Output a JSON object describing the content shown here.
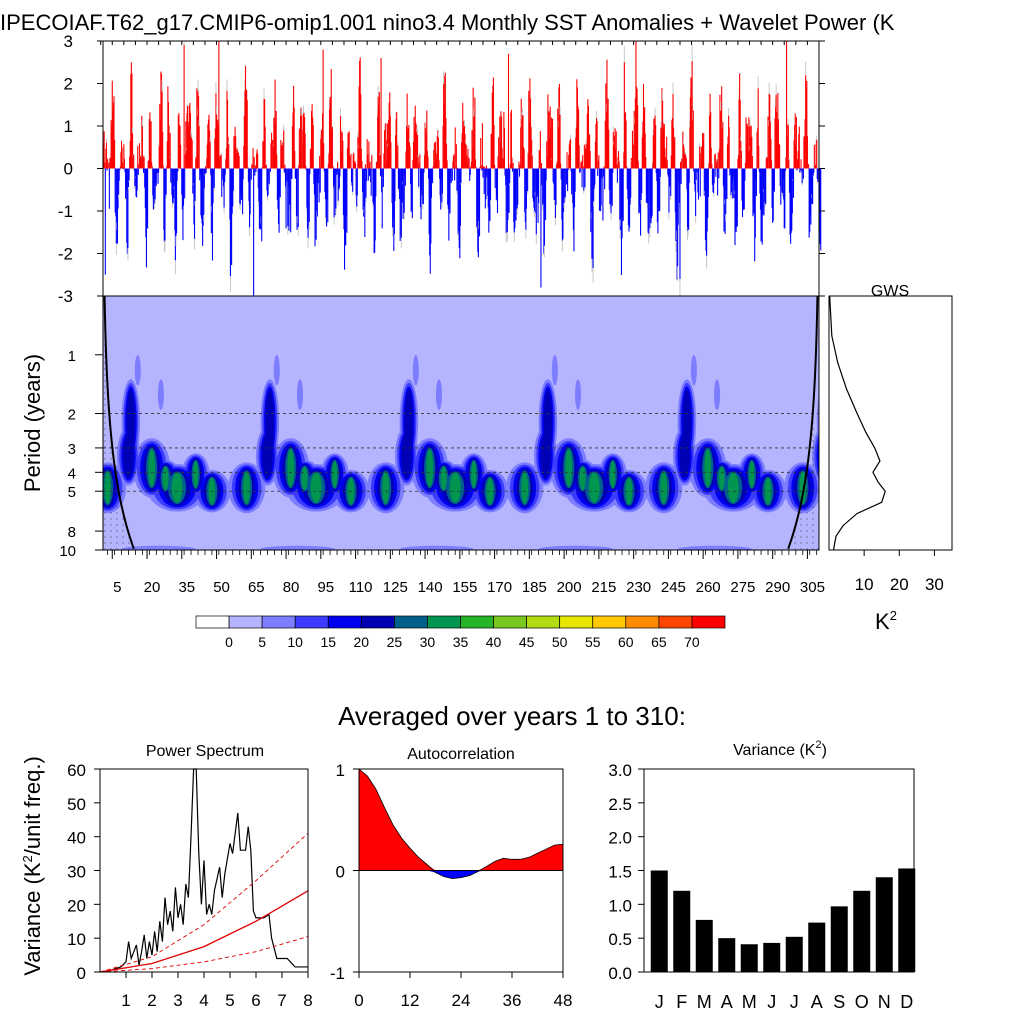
{
  "title": "IPECOIAF.T62_g17.CMIP6-omip1.001 nino3.4 Monthly SST Anomalies + Wavelet Power (K",
  "colors": {
    "positive": "#ff0000",
    "negative": "#0000ff",
    "gray": "#c8c8c8",
    "bar": "#000000"
  },
  "chart_data": [
    {
      "id": "sst_anomaly",
      "type": "bar",
      "title": "",
      "xlabel": "",
      "ylabel": "",
      "ylim": [
        -3,
        3
      ],
      "yticks": [
        3,
        2,
        1,
        0,
        -1,
        -2,
        -3
      ],
      "xlim": [
        1,
        310
      ],
      "note_values": "red bars above 0 and blue bars below 0; values estimated, representative ENSO-like series",
      "peaks": [
        {
          "x": 36,
          "y": 2.9
        },
        {
          "x": 51,
          "y": 3.0
        },
        {
          "x": 96,
          "y": 2.8
        },
        {
          "x": 121,
          "y": 2.6
        },
        {
          "x": 176,
          "y": 2.7
        },
        {
          "x": 226,
          "y": 2.5
        },
        {
          "x": 231,
          "y": 3.0
        },
        {
          "x": 296,
          "y": 3.0
        },
        {
          "x": 66,
          "y": -3.0
        },
        {
          "x": 190,
          "y": -2.8
        },
        {
          "x": 250,
          "y": -2.6
        },
        {
          "x": 2,
          "y": -2.5
        }
      ]
    },
    {
      "id": "wavelet_power",
      "type": "heatmap",
      "title": "",
      "xlabel": "",
      "ylabel": "Period (years)",
      "yticks": [
        "1",
        "2",
        "3",
        "4",
        "5",
        "8",
        "10"
      ],
      "xticks": [
        "5",
        "20",
        "35",
        "50",
        "65",
        "80",
        "95",
        "110",
        "125",
        "140",
        "155",
        "170",
        "185",
        "200",
        "215",
        "230",
        "245",
        "260",
        "275",
        "290",
        "305"
      ],
      "log_y": true,
      "ylim": [
        0.5,
        10
      ],
      "dashed_periods": [
        2,
        3,
        4,
        5
      ],
      "repeat_period_years": 60,
      "colorbar": {
        "labels": [
          "0",
          "5",
          "10",
          "15",
          "20",
          "25",
          "30",
          "35",
          "40",
          "45",
          "50",
          "55",
          "60",
          "65",
          "70"
        ],
        "colors": [
          "#ffffff",
          "#b4b4ff",
          "#7d7dff",
          "#3c3cff",
          "#0000f0",
          "#0000b4",
          "#00608c",
          "#009650",
          "#28b428",
          "#78c81e",
          "#b4dc14",
          "#e6e600",
          "#ffc800",
          "#ff8c00",
          "#ff4600",
          "#ff0000"
        ]
      }
    },
    {
      "id": "gws",
      "type": "line",
      "title": "GWS",
      "xlabel": "K²",
      "xticks": [
        "10",
        "20",
        "30"
      ],
      "xlim": [
        0,
        35
      ],
      "points": [
        {
          "period": 0.5,
          "value": 0.2
        },
        {
          "period": 0.8,
          "value": 0.8
        },
        {
          "period": 1.1,
          "value": 2.5
        },
        {
          "period": 1.5,
          "value": 5
        },
        {
          "period": 2.0,
          "value": 8
        },
        {
          "period": 2.5,
          "value": 10.5
        },
        {
          "period": 3.0,
          "value": 13
        },
        {
          "period": 3.5,
          "value": 14.5
        },
        {
          "period": 4.0,
          "value": 12.5
        },
        {
          "period": 4.5,
          "value": 14
        },
        {
          "period": 5.0,
          "value": 16
        },
        {
          "period": 5.7,
          "value": 15
        },
        {
          "period": 6.5,
          "value": 8
        },
        {
          "period": 7.5,
          "value": 4
        },
        {
          "period": 8.5,
          "value": 2
        },
        {
          "period": 9.5,
          "value": 1.5
        },
        {
          "period": 10,
          "value": 1.3
        }
      ]
    },
    {
      "id": "power_spectrum",
      "type": "line",
      "title": "Power Spectrum",
      "xlabel": "",
      "ylabel": "Variance (K²/unit freq.)",
      "ylim": [
        0,
        60
      ],
      "xlim": [
        0,
        8
      ],
      "yticks": [
        "0",
        "10",
        "20",
        "30",
        "40",
        "50",
        "60"
      ],
      "xticks": [
        "1",
        "2",
        "3",
        "4",
        "5",
        "6",
        "7",
        "8"
      ],
      "series": [
        {
          "values": [
            [
              0,
              0
            ],
            [
              0.4,
              0.5
            ],
            [
              0.8,
              1.5
            ],
            [
              1.0,
              3
            ],
            [
              1.1,
              9
            ],
            [
              1.2,
              4
            ],
            [
              1.4,
              8
            ],
            [
              1.5,
              2
            ],
            [
              1.6,
              6
            ],
            [
              1.7,
              11
            ],
            [
              1.8,
              4
            ],
            [
              1.9,
              9
            ],
            [
              2.0,
              5
            ],
            [
              2.1,
              12
            ],
            [
              2.2,
              6
            ],
            [
              2.3,
              15
            ],
            [
              2.4,
              9
            ],
            [
              2.5,
              22
            ],
            [
              2.6,
              14
            ],
            [
              2.7,
              18
            ],
            [
              2.8,
              12
            ],
            [
              2.9,
              25
            ],
            [
              3.0,
              16
            ],
            [
              3.1,
              20
            ],
            [
              3.2,
              14
            ],
            [
              3.3,
              26
            ],
            [
              3.4,
              22
            ],
            [
              3.5,
              40
            ],
            [
              3.6,
              60
            ],
            [
              3.7,
              60
            ],
            [
              3.8,
              35
            ],
            [
              3.9,
              20
            ],
            [
              4.0,
              33
            ],
            [
              4.1,
              17
            ],
            [
              4.2,
              20
            ],
            [
              4.3,
              17
            ],
            [
              4.4,
              24
            ],
            [
              4.6,
              31
            ],
            [
              4.7,
              22
            ],
            [
              4.8,
              29
            ],
            [
              5.0,
              38
            ],
            [
              5.1,
              35
            ],
            [
              5.3,
              47
            ],
            [
              5.4,
              36
            ],
            [
              5.6,
              36
            ],
            [
              5.7,
              43
            ],
            [
              5.8,
              36
            ],
            [
              5.9,
              18
            ],
            [
              6.0,
              16
            ],
            [
              6.3,
              16
            ],
            [
              6.5,
              17
            ],
            [
              6.6,
              10
            ],
            [
              6.8,
              4
            ],
            [
              7.2,
              4
            ],
            [
              7.5,
              1.5
            ],
            [
              8.0,
              1.5
            ]
          ]
        },
        {
          "style": "red-solid",
          "values": [
            [
              0,
              0
            ],
            [
              2,
              2.5
            ],
            [
              4,
              7.5
            ],
            [
              6,
              15
            ],
            [
              8,
              24
            ]
          ]
        },
        {
          "style": "red-dashed",
          "values": [
            [
              0,
              0
            ],
            [
              2,
              4.5
            ],
            [
              4,
              14
            ],
            [
              6,
              27
            ],
            [
              8,
              41
            ]
          ]
        },
        {
          "style": "red-dashed",
          "values": [
            [
              0,
              0
            ],
            [
              2,
              1
            ],
            [
              4,
              3
            ],
            [
              6,
              6
            ],
            [
              8,
              10.5
            ]
          ]
        }
      ]
    },
    {
      "id": "autocorrelation",
      "type": "area",
      "title": "Autocorrelation",
      "xlim": [
        0,
        48
      ],
      "ylim": [
        -1,
        1
      ],
      "yticks": [
        "1",
        "0",
        "-1"
      ],
      "xticks": [
        "0",
        "12",
        "24",
        "36",
        "48"
      ],
      "values": [
        [
          0,
          1.0
        ],
        [
          2,
          0.93
        ],
        [
          4,
          0.8
        ],
        [
          6,
          0.62
        ],
        [
          8,
          0.45
        ],
        [
          10,
          0.32
        ],
        [
          12,
          0.22
        ],
        [
          14,
          0.13
        ],
        [
          16,
          0.06
        ],
        [
          18,
          -0.02
        ],
        [
          20,
          -0.06
        ],
        [
          22,
          -0.08
        ],
        [
          24,
          -0.07
        ],
        [
          26,
          -0.05
        ],
        [
          28,
          -0.01
        ],
        [
          30,
          0.04
        ],
        [
          32,
          0.09
        ],
        [
          34,
          0.12
        ],
        [
          36,
          0.11
        ],
        [
          38,
          0.11
        ],
        [
          40,
          0.13
        ],
        [
          42,
          0.17
        ],
        [
          44,
          0.21
        ],
        [
          46,
          0.25
        ],
        [
          48,
          0.26
        ]
      ]
    },
    {
      "id": "monthly_variance",
      "type": "bar",
      "title": "Variance (K²)",
      "ylim": [
        0,
        3.0
      ],
      "yticks": [
        "0.0",
        "0.5",
        "1.0",
        "1.5",
        "2.0",
        "2.5",
        "3.0"
      ],
      "categories": [
        "J",
        "F",
        "M",
        "A",
        "M",
        "J",
        "J",
        "A",
        "S",
        "O",
        "N",
        "D"
      ],
      "values": [
        1.5,
        1.2,
        0.77,
        0.5,
        0.41,
        0.43,
        0.52,
        0.73,
        0.97,
        1.2,
        1.4,
        1.53
      ]
    }
  ],
  "subtitle_avg": "Averaged over years 1 to 310:"
}
